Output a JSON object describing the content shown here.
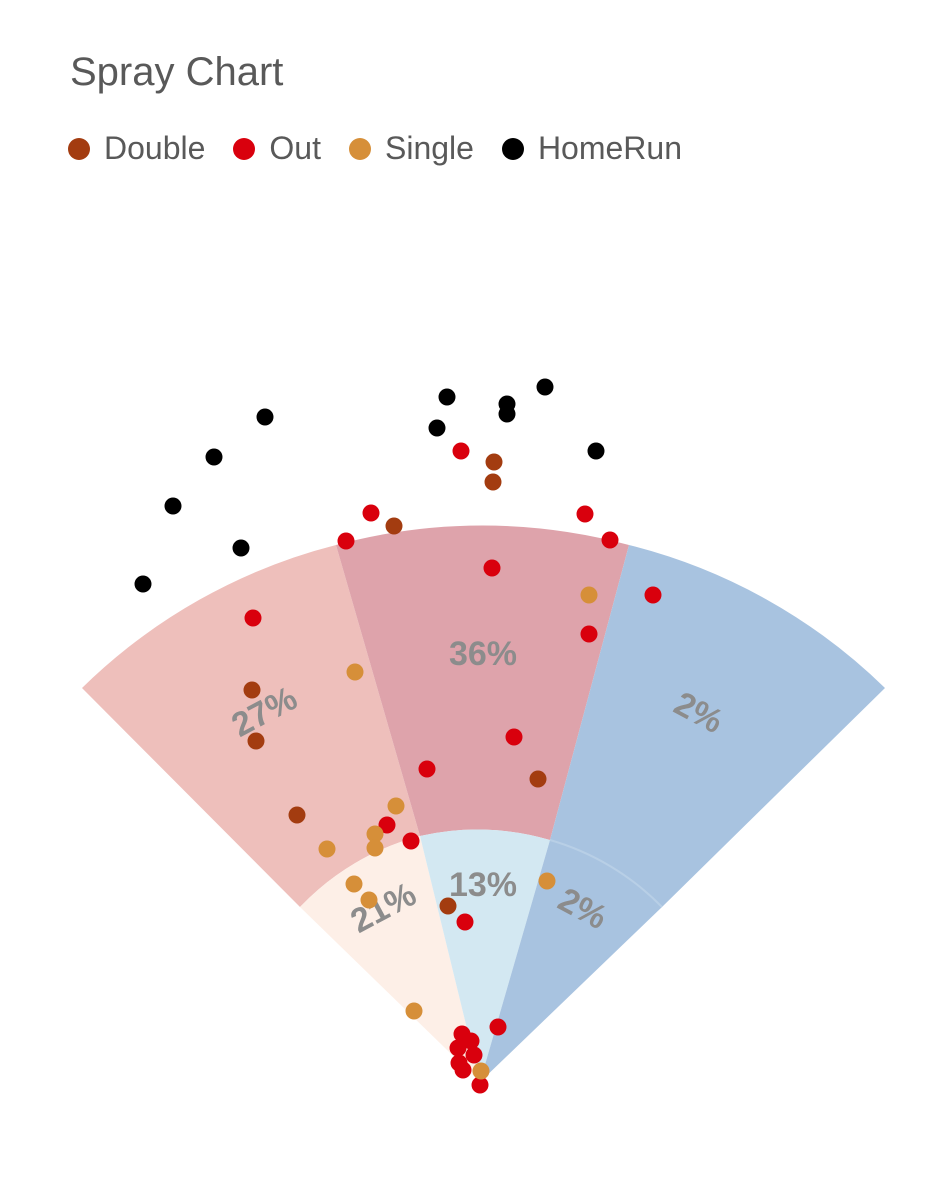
{
  "title": "Spray Chart",
  "legend": [
    {
      "label": "Double",
      "color": "#a33c10"
    },
    {
      "label": "Out",
      "color": "#d9000d"
    },
    {
      "label": "Single",
      "color": "#d68f39"
    },
    {
      "label": "HomeRun",
      "color": "#000000"
    }
  ],
  "chart_data": {
    "type": "scatter",
    "title": "Spray Chart",
    "legend_position": "top-left",
    "zones": [
      {
        "ring": "outer",
        "sector": "left",
        "label": "27%",
        "color": "#eebfbb"
      },
      {
        "ring": "outer",
        "sector": "center",
        "label": "36%",
        "color": "#dea3ab"
      },
      {
        "ring": "outer",
        "sector": "right",
        "label": "2%",
        "color": "#a8c3e0"
      },
      {
        "ring": "inner",
        "sector": "left",
        "label": "21%",
        "color": "#fdefe7"
      },
      {
        "ring": "inner",
        "sector": "center",
        "label": "13%",
        "color": "#d3e8f2"
      },
      {
        "ring": "inner",
        "sector": "right",
        "label": "2%",
        "color": "#a8c3e0"
      }
    ],
    "series": [
      {
        "name": "Double",
        "color": "#a33c10",
        "points": [
          [
            494,
            462
          ],
          [
            493,
            482
          ],
          [
            394,
            526
          ],
          [
            252,
            690
          ],
          [
            256,
            741
          ],
          [
            297,
            815
          ],
          [
            538,
            779
          ],
          [
            448,
            906
          ]
        ]
      },
      {
        "name": "Out",
        "color": "#d9000d",
        "points": [
          [
            461,
            451
          ],
          [
            371,
            513
          ],
          [
            346,
            541
          ],
          [
            585,
            514
          ],
          [
            610,
            540
          ],
          [
            492,
            568
          ],
          [
            653,
            595
          ],
          [
            253,
            618
          ],
          [
            589,
            634
          ],
          [
            514,
            737
          ],
          [
            427,
            769
          ],
          [
            387,
            825
          ],
          [
            411,
            841
          ],
          [
            465,
            922
          ],
          [
            498,
            1027
          ],
          [
            462,
            1034
          ],
          [
            471,
            1041
          ],
          [
            458,
            1048
          ],
          [
            474,
            1055
          ],
          [
            459,
            1063
          ],
          [
            463,
            1070
          ],
          [
            480,
            1085
          ]
        ]
      },
      {
        "name": "Single",
        "color": "#d68f39",
        "points": [
          [
            589,
            595
          ],
          [
            355,
            672
          ],
          [
            396,
            806
          ],
          [
            375,
            834
          ],
          [
            375,
            848
          ],
          [
            327,
            849
          ],
          [
            547,
            881
          ],
          [
            354,
            884
          ],
          [
            369,
            900
          ],
          [
            414,
            1011
          ],
          [
            481,
            1071
          ]
        ]
      },
      {
        "name": "HomeRun",
        "color": "#000000",
        "points": [
          [
            545,
            387
          ],
          [
            447,
            397
          ],
          [
            507,
            404
          ],
          [
            265,
            417
          ],
          [
            507,
            414
          ],
          [
            437,
            428
          ],
          [
            596,
            451
          ],
          [
            214,
            457
          ],
          [
            173,
            506
          ],
          [
            241,
            548
          ],
          [
            143,
            584
          ]
        ]
      }
    ]
  }
}
